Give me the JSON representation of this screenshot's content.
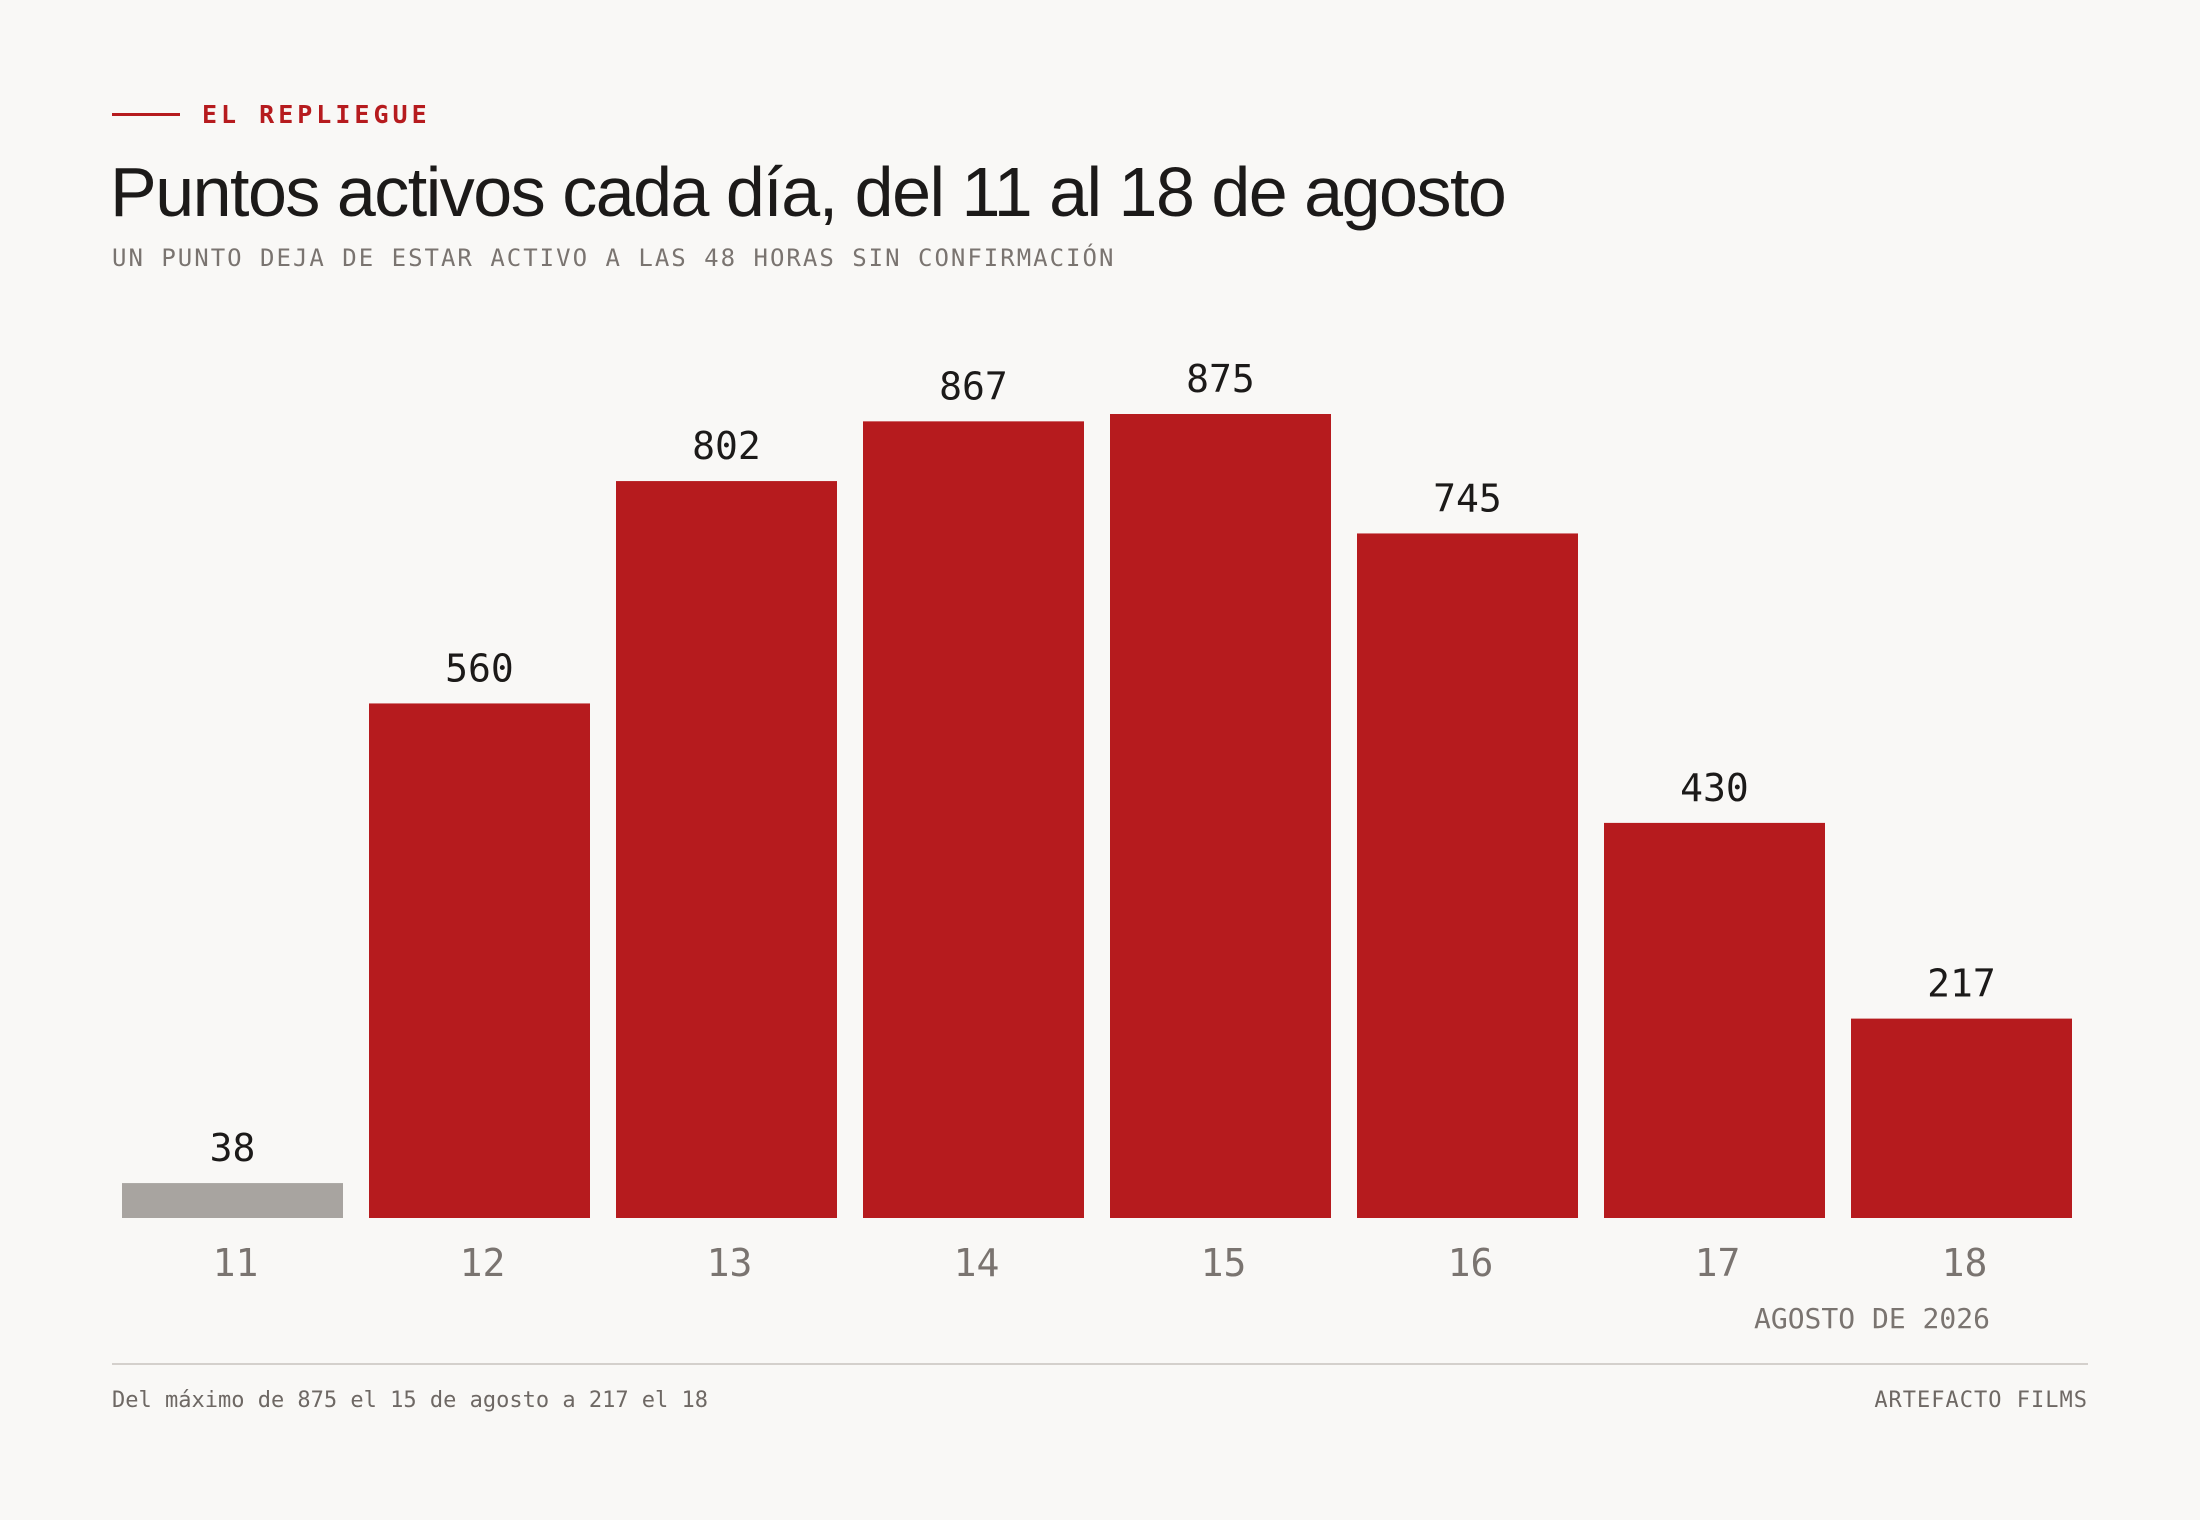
{
  "header": {
    "kicker": "EL REPLIEGUE",
    "title": "Puntos activos cada día, del 11 al 18 de agosto",
    "subtitle": "UN PUNTO DEJA DE ESTAR ACTIVO A LAS 48 HORAS SIN CONFIRMACIÓN"
  },
  "footer": {
    "note": "Del máximo de 875 el 15 de agosto a 217 el 18",
    "credit": "ARTEFACTO FILMS"
  },
  "colors": {
    "accent": "#b61b1e",
    "muted_bar": "#a8a4a0",
    "background": "#f9f8f6",
    "text": "#1c1a19",
    "secondary_text": "#7a7470"
  },
  "chart_data": {
    "type": "bar",
    "categories": [
      "11",
      "12",
      "13",
      "14",
      "15",
      "16",
      "17",
      "18"
    ],
    "values": [
      38,
      560,
      802,
      867,
      875,
      745,
      430,
      217
    ],
    "highlight": [
      false,
      true,
      true,
      true,
      true,
      true,
      true,
      true
    ],
    "x_unit_label": "AGOSTO DE 2026",
    "ylim": [
      0,
      875
    ],
    "grid": false,
    "legend": "none"
  }
}
